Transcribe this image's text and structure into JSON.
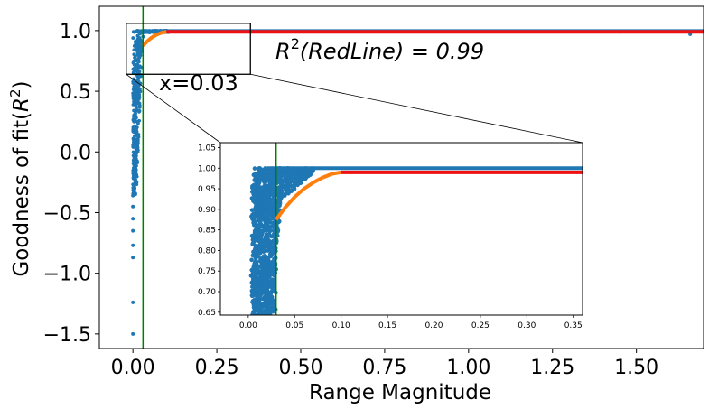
{
  "chart_data": {
    "type": "scatter",
    "xlabel": "Range Magnitude",
    "ylabel": "Goodness of fit($R^2$)",
    "ylabel_parts": {
      "main": "Goodness of fit(",
      "r": "R",
      "sup": "2",
      "close": ")"
    },
    "xlim": [
      -0.1,
      1.7
    ],
    "ylim": [
      -1.62,
      1.2
    ],
    "xticks": [
      0.0,
      0.25,
      0.5,
      0.75,
      1.0,
      1.25,
      1.5
    ],
    "xtick_labels": [
      "0.00",
      "0.25",
      "0.50",
      "0.75",
      "1.00",
      "1.25",
      "1.50"
    ],
    "yticks": [
      1.0,
      0.5,
      0.0,
      -0.5,
      -1.0,
      -1.5
    ],
    "ytick_labels": [
      "1.0",
      "0.5",
      "0.0",
      "−0.5",
      "−1.0",
      "−1.5"
    ],
    "vline_x": 0.03,
    "vline_label": "x=0.03",
    "r2_annotation": {
      "r": "R",
      "sup": "2",
      "rest": "(RedLine) = 0.99"
    },
    "colors": {
      "blue": "#1f77b4",
      "orange": "#ff7f0e",
      "red": "#ee1111",
      "green": "#008000"
    },
    "series": [
      {
        "color": "blue",
        "points": [
          [
            0.0,
            -1.5
          ],
          [
            0.0,
            -1.24
          ],
          [
            0.0,
            -0.87
          ],
          [
            0.0,
            -0.77
          ],
          [
            0.0,
            -0.65
          ],
          [
            0.0,
            -0.55
          ],
          [
            0.0,
            -0.45
          ],
          [
            0.0,
            -0.36
          ],
          [
            0.005,
            -0.2
          ],
          [
            0.008,
            -0.05
          ],
          [
            0.01,
            0.1
          ],
          [
            0.012,
            0.25
          ],
          [
            0.015,
            0.4
          ],
          [
            0.018,
            0.55
          ],
          [
            0.02,
            0.7
          ],
          [
            0.025,
            0.85
          ],
          [
            0.03,
            0.95
          ],
          [
            0.05,
            0.99
          ],
          [
            1.66,
            0.97
          ],
          [
            1.45,
            0.99
          ],
          [
            1.63,
            0.995
          ]
        ]
      },
      {
        "color": "orange",
        "points": [
          [
            0.03,
            0.875
          ],
          [
            0.04,
            0.905
          ],
          [
            0.05,
            0.93
          ],
          [
            0.06,
            0.95
          ],
          [
            0.07,
            0.965
          ],
          [
            0.08,
            0.977
          ],
          [
            0.09,
            0.986
          ],
          [
            0.1,
            0.99
          ]
        ]
      },
      {
        "color": "red",
        "points": [
          [
            0.1,
            0.99
          ],
          [
            0.3,
            0.99
          ],
          [
            0.5,
            0.99
          ],
          [
            0.75,
            0.99
          ],
          [
            1.0,
            0.99
          ],
          [
            1.25,
            0.99
          ],
          [
            1.5,
            0.99
          ],
          [
            1.7,
            0.99
          ]
        ]
      }
    ],
    "inset": {
      "xlim": [
        -0.03,
        0.36
      ],
      "ylim": [
        0.643,
        1.062
      ],
      "xticks": [
        0.0,
        0.05,
        0.1,
        0.15,
        0.2,
        0.25,
        0.3,
        0.35
      ],
      "xtick_labels": [
        "0.00",
        "0.05",
        "0.10",
        "0.15",
        "0.20",
        "0.25",
        "0.30",
        "0.35"
      ],
      "yticks": [
        1.05,
        1.0,
        0.95,
        0.9,
        0.85,
        0.8,
        0.75,
        0.7,
        0.65
      ],
      "ytick_labels": [
        "1.05",
        "1.00",
        "0.95",
        "0.90",
        "0.85",
        "0.80",
        "0.75",
        "0.70",
        "0.65"
      ],
      "zoom_region": {
        "x": [
          -0.02,
          0.35
        ],
        "y": [
          0.64,
          1.06
        ]
      }
    }
  }
}
